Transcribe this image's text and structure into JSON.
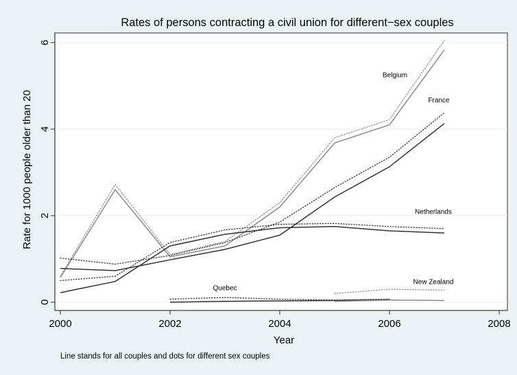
{
  "chart_data": {
    "type": "line",
    "title": "Rates of persons contracting a civil union for different−sex couples",
    "xlabel": "Year",
    "ylabel": "Rate for 1000 people older than 20",
    "note": "Line stands for all couples and dots for different sex couples",
    "xlim": [
      2000,
      2008
    ],
    "ylim": [
      0,
      6
    ],
    "x_ticks": [
      "2000",
      "2002",
      "2004",
      "2006",
      "2008"
    ],
    "y_ticks": [
      "0",
      "2",
      "4",
      "6"
    ],
    "x_tick_values": [
      2000,
      2002,
      2004,
      2006,
      2008
    ],
    "y_tick_values": [
      0,
      2,
      4,
      6
    ],
    "grid": "horizontal",
    "series": [
      {
        "name": "Belgium",
        "color": "#8c8c8c",
        "all_couples": {
          "x": [
            2000,
            2001,
            2002,
            2003,
            2004,
            2005,
            2006,
            2007
          ],
          "y": [
            0.57,
            2.6,
            1.05,
            1.3,
            2.2,
            3.68,
            4.1,
            5.83
          ]
        },
        "different_sex": {
          "x": [
            2000,
            2001,
            2002,
            2003,
            2004,
            2005,
            2006,
            2007
          ],
          "y": [
            0.6,
            2.72,
            1.1,
            1.4,
            2.3,
            3.8,
            4.22,
            6.05
          ]
        }
      },
      {
        "name": "France",
        "color": "#333333",
        "all_couples": {
          "x": [
            2000,
            2001,
            2002,
            2003,
            2004,
            2005,
            2006,
            2007
          ],
          "y": [
            0.22,
            0.48,
            1.3,
            1.57,
            1.72,
            1.75,
            1.65,
            1.6
          ]
        },
        "different_sex": {
          "x": [
            2000,
            2001,
            2002,
            2003,
            2004,
            2005,
            2006,
            2007
          ],
          "y": [
            0.5,
            0.6,
            1.38,
            1.67,
            1.8,
            1.82,
            1.75,
            1.7
          ]
        }
      },
      {
        "name": "Netherlands",
        "color": "#333333",
        "all_couples": {
          "x": [
            2000,
            2001,
            2002,
            2003,
            2004,
            2005,
            2006,
            2007
          ],
          "y": [
            0.78,
            0.73,
            0.98,
            1.22,
            1.55,
            2.43,
            3.13,
            4.13
          ]
        },
        "different_sex": {
          "x": [
            2000,
            2001,
            2002,
            2003,
            2004,
            2005,
            2006,
            2007
          ],
          "y": [
            1.02,
            0.88,
            1.08,
            1.38,
            1.85,
            2.65,
            3.35,
            4.38
          ]
        }
      },
      {
        "name": "Quebec",
        "color": "#333333",
        "all_couples": {
          "x": [
            2002,
            2003,
            2004,
            2005,
            2006
          ],
          "y": [
            0.0,
            0.02,
            0.03,
            0.04,
            0.06
          ]
        },
        "different_sex": {
          "x": [
            2002,
            2003,
            2004,
            2005,
            2006
          ],
          "y": [
            0.07,
            0.11,
            0.07,
            0.05,
            0.07
          ]
        }
      },
      {
        "name": "New Zealand",
        "color": "#8c8c8c",
        "all_couples": {
          "x": [
            2005,
            2006,
            2007
          ],
          "y": [
            0.02,
            0.05,
            0.04
          ]
        },
        "different_sex": {
          "x": [
            2005,
            2006,
            2007
          ],
          "y": [
            0.2,
            0.3,
            0.28
          ]
        }
      }
    ]
  }
}
